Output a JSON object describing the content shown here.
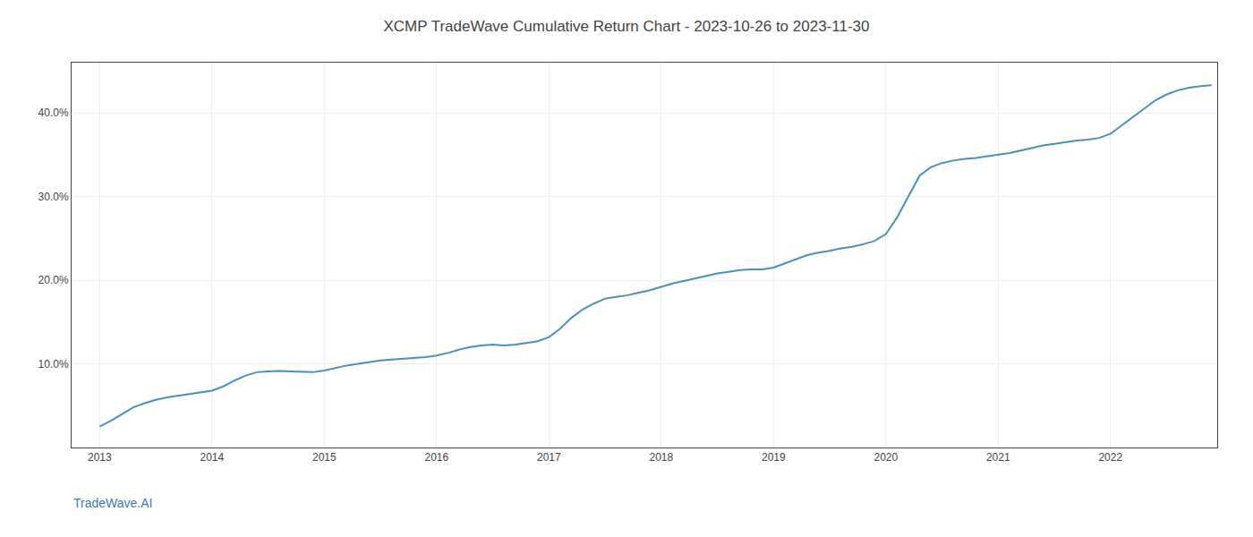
{
  "chart_data": {
    "type": "line",
    "title": "XCMP TradeWave Cumulative Return Chart - 2023-10-26 to 2023-11-30",
    "annotations": [
      "TradeWave.AI"
    ],
    "color": "#4a90b8",
    "grid": true,
    "x": [
      2013.0,
      2013.1,
      2013.2,
      2013.3,
      2013.4,
      2013.5,
      2013.6,
      2013.7,
      2013.8,
      2013.9,
      2014.0,
      2014.1,
      2014.2,
      2014.3,
      2014.4,
      2014.5,
      2014.6,
      2014.7,
      2014.8,
      2014.9,
      2015.0,
      2015.1,
      2015.2,
      2015.3,
      2015.4,
      2015.5,
      2015.6,
      2015.7,
      2015.8,
      2015.9,
      2016.0,
      2016.1,
      2016.2,
      2016.3,
      2016.4,
      2016.5,
      2016.6,
      2016.7,
      2016.8,
      2016.9,
      2017.0,
      2017.1,
      2017.2,
      2017.3,
      2017.4,
      2017.5,
      2017.6,
      2017.7,
      2017.8,
      2017.9,
      2018.0,
      2018.1,
      2018.2,
      2018.3,
      2018.4,
      2018.5,
      2018.6,
      2018.7,
      2018.8,
      2018.9,
      2019.0,
      2019.1,
      2019.2,
      2019.3,
      2019.4,
      2019.5,
      2019.6,
      2019.7,
      2019.8,
      2019.9,
      2020.0,
      2020.1,
      2020.2,
      2020.3,
      2020.4,
      2020.5,
      2020.6,
      2020.7,
      2020.8,
      2020.9,
      2021.0,
      2021.1,
      2021.2,
      2021.3,
      2021.4,
      2021.5,
      2021.6,
      2021.7,
      2021.8,
      2021.9,
      2022.0,
      2022.1,
      2022.2,
      2022.3,
      2022.4,
      2022.5,
      2022.6,
      2022.7,
      2022.8,
      2022.9
    ],
    "values": [
      2.5,
      3.2,
      4.0,
      4.8,
      5.3,
      5.7,
      6.0,
      6.2,
      6.4,
      6.6,
      6.8,
      7.3,
      8.0,
      8.6,
      9.0,
      9.1,
      9.15,
      9.1,
      9.05,
      9.0,
      9.2,
      9.5,
      9.8,
      10.0,
      10.2,
      10.4,
      10.5,
      10.6,
      10.7,
      10.8,
      11.0,
      11.3,
      11.7,
      12.0,
      12.2,
      12.3,
      12.2,
      12.3,
      12.5,
      12.7,
      13.2,
      14.2,
      15.5,
      16.5,
      17.2,
      17.8,
      18.0,
      18.2,
      18.5,
      18.8,
      19.2,
      19.6,
      19.9,
      20.2,
      20.5,
      20.8,
      21.0,
      21.2,
      21.3,
      21.3,
      21.5,
      22.0,
      22.5,
      23.0,
      23.3,
      23.5,
      23.8,
      24.0,
      24.3,
      24.7,
      25.5,
      27.5,
      30.0,
      32.5,
      33.5,
      34.0,
      34.3,
      34.5,
      34.6,
      34.8,
      35.0,
      35.2,
      35.5,
      35.8,
      36.1,
      36.3,
      36.5,
      36.7,
      36.8,
      37.0,
      37.5,
      38.5,
      39.5,
      40.5,
      41.5,
      42.2,
      42.7,
      43.0,
      43.2,
      43.3
    ],
    "xlim": [
      2012.75,
      2022.95
    ],
    "xticks": [
      2013,
      2014,
      2015,
      2016,
      2017,
      2018,
      2019,
      2020,
      2021,
      2022
    ],
    "ylim": [
      0,
      46
    ],
    "yticks": [
      {
        "value": 10.0,
        "label": "10.0%"
      },
      {
        "value": 20.0,
        "label": "20.0%"
      },
      {
        "value": 30.0,
        "label": "30.0%"
      },
      {
        "value": 40.0,
        "label": "40.0%"
      }
    ]
  }
}
